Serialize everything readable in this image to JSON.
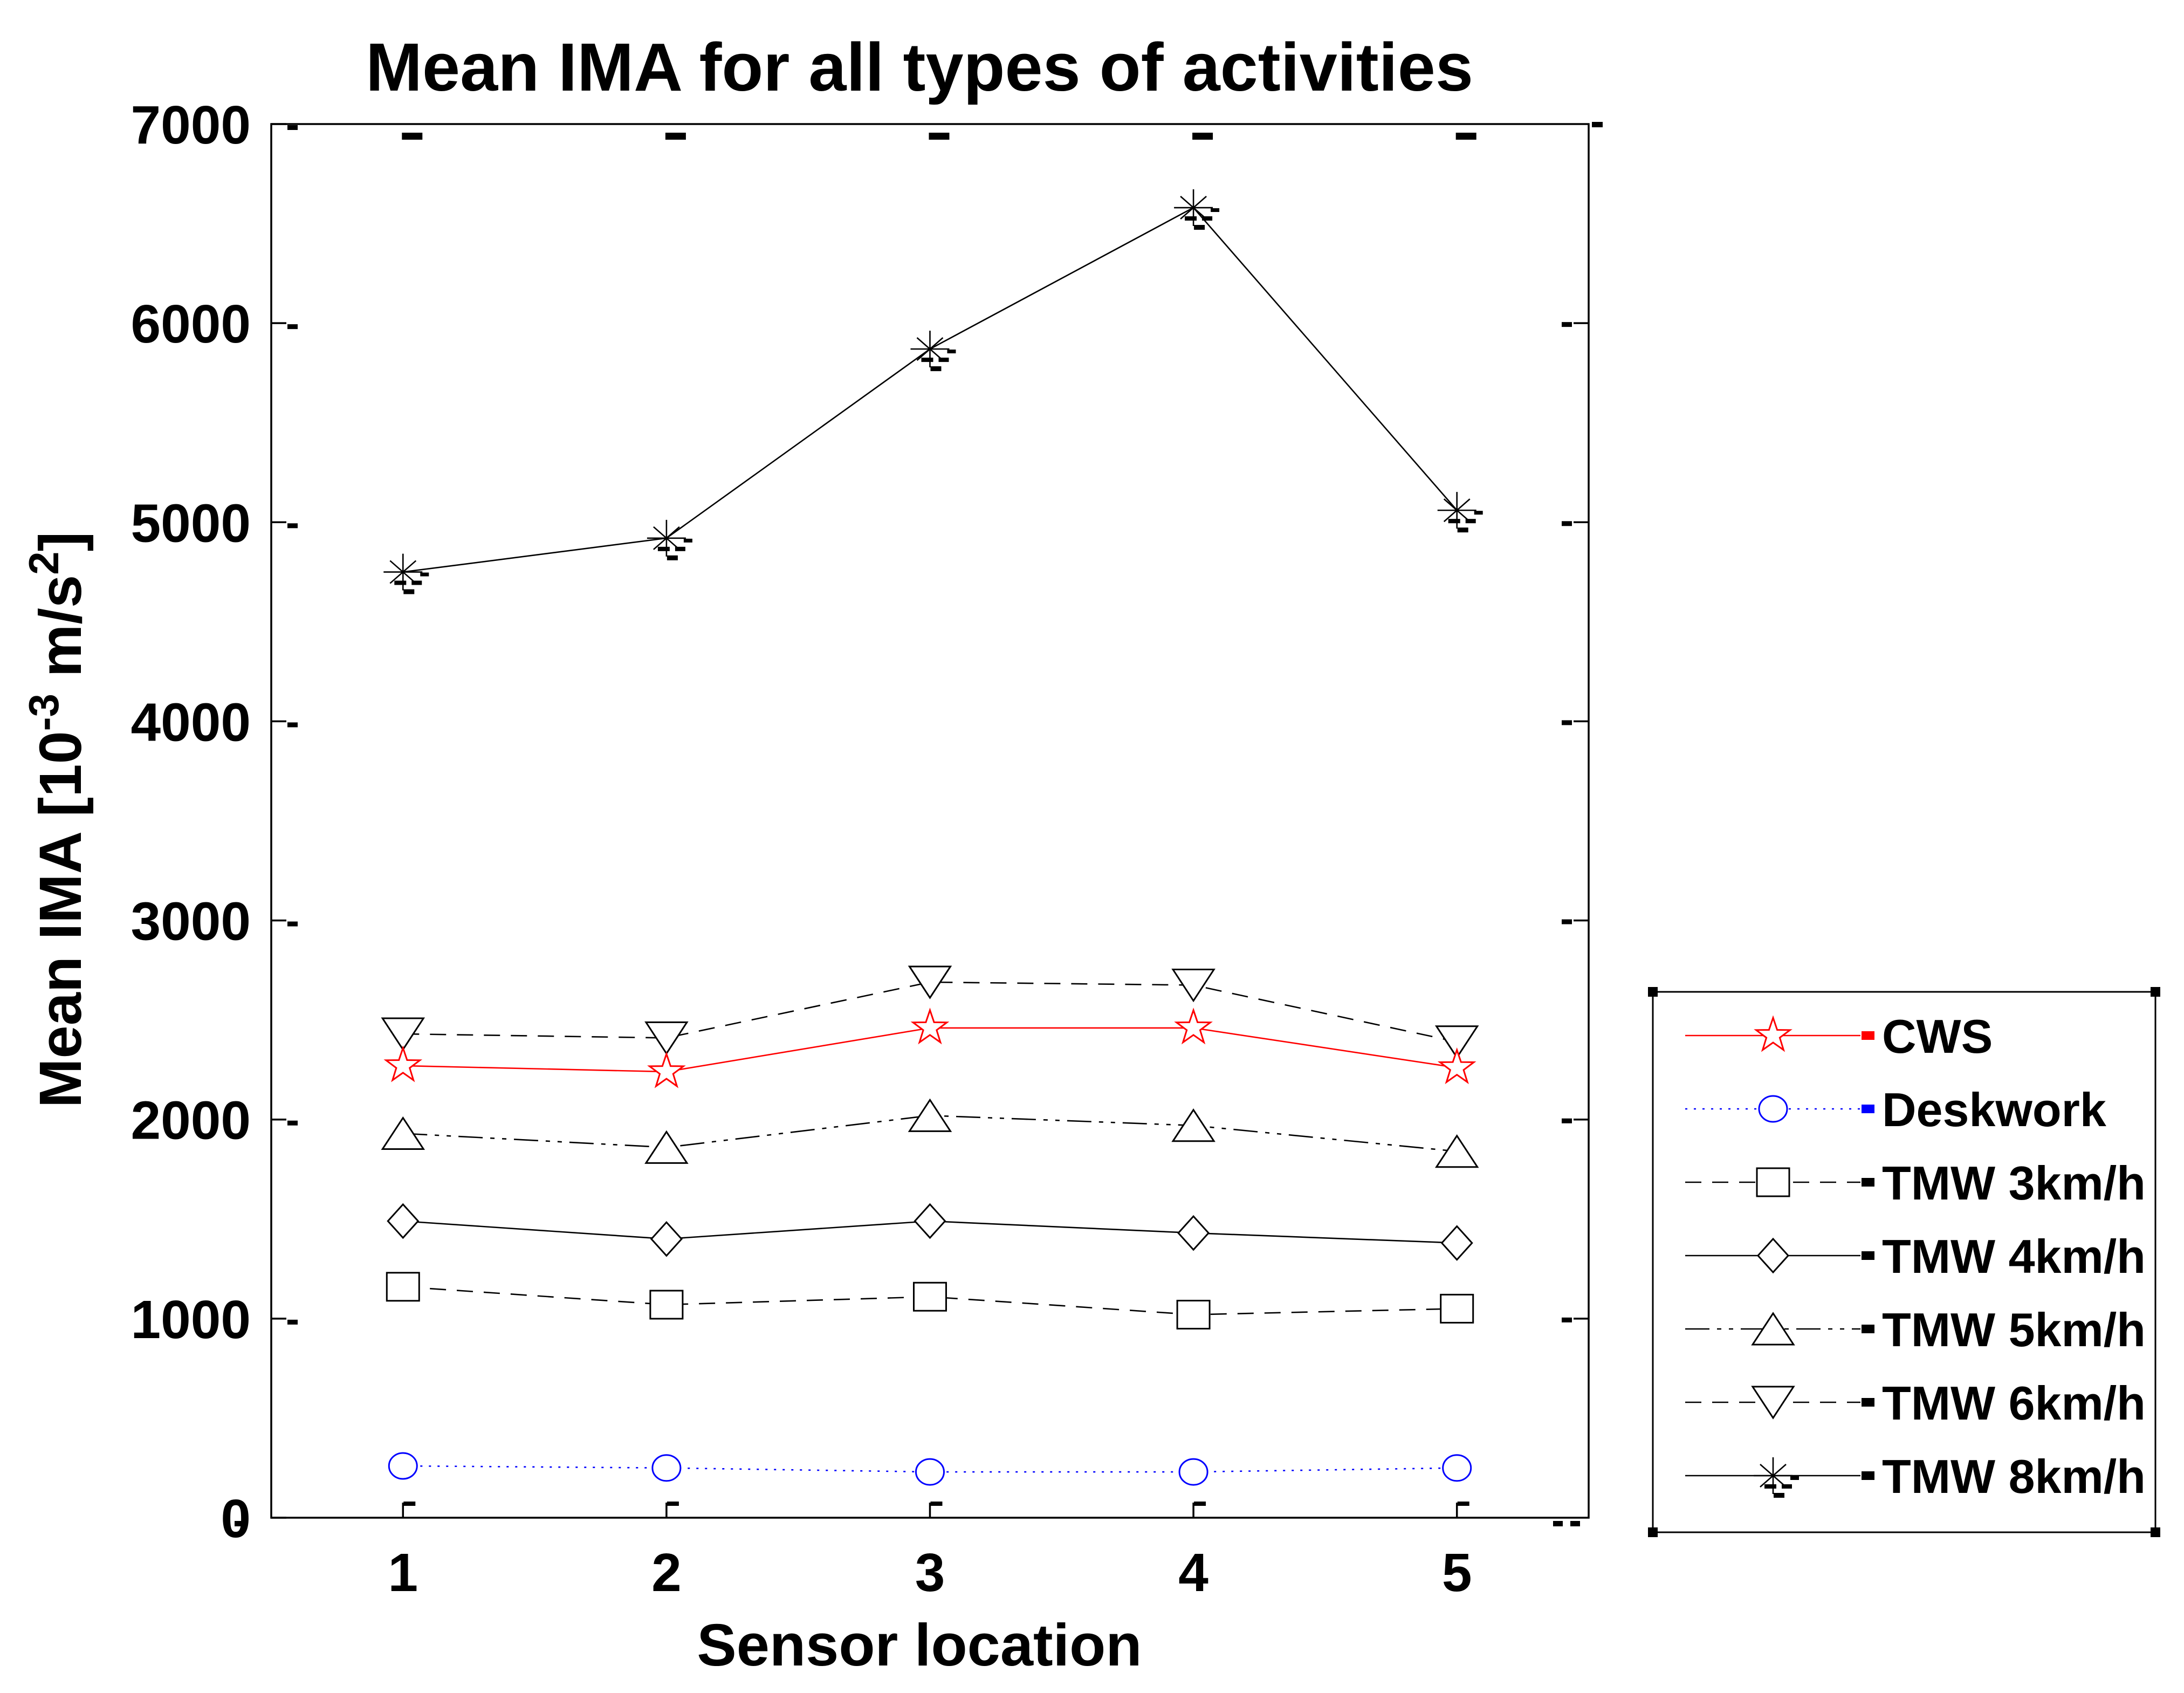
{
  "chart_data": {
    "type": "line",
    "title": "Mean IMA for all types of activities",
    "xlabel": "Sensor location",
    "ylabel": "Mean IMA [10^-3 m/s^2]",
    "ylabel_parts": [
      {
        "text": "Mean IMA [10"
      },
      {
        "text": "-3",
        "sup": true
      },
      {
        "text": " m/s",
        "sup": false
      },
      {
        "text": "2",
        "sup": true
      },
      {
        "text": "]",
        "sup": false
      }
    ],
    "x": [
      1,
      2,
      3,
      4,
      5
    ],
    "xticks": [
      1,
      2,
      3,
      4,
      5
    ],
    "yticks": [
      0,
      1000,
      2000,
      3000,
      4000,
      5000,
      6000,
      7000
    ],
    "xlim": [
      0.5,
      5.5
    ],
    "ylim": [
      0,
      7000
    ],
    "grid": false,
    "legend_position": "right-outside",
    "axis_color": "#000000",
    "background_color": "#ffffff",
    "series": [
      {
        "name": "CWS",
        "marker": "star5",
        "color": "#ff0000",
        "linestyle": "solid",
        "values": [
          2270,
          2240,
          2460,
          2460,
          2260
        ]
      },
      {
        "name": "Deskwork",
        "marker": "circle",
        "color": "#0000ff",
        "linestyle": "dotted",
        "values": [
          260,
          250,
          230,
          230,
          250
        ]
      },
      {
        "name": "TMW 3km/h",
        "marker": "square",
        "color": "#000000",
        "linestyle": "dashed",
        "values": [
          1160,
          1070,
          1110,
          1020,
          1050
        ]
      },
      {
        "name": "TMW 4km/h",
        "marker": "diamond",
        "color": "#000000",
        "linestyle": "solid",
        "values": [
          1490,
          1400,
          1490,
          1430,
          1380
        ]
      },
      {
        "name": "TMW 5km/h",
        "marker": "triangle-up",
        "color": "#000000",
        "linestyle": "dashdotdot",
        "values": [
          1930,
          1860,
          2020,
          1970,
          1840
        ]
      },
      {
        "name": "TMW 6km/h",
        "marker": "triangle-down",
        "color": "#000000",
        "linestyle": "dashed",
        "values": [
          2430,
          2410,
          2690,
          2675,
          2390
        ]
      },
      {
        "name": "TMW 8km/h",
        "marker": "asterisk",
        "color": "#000000",
        "linestyle": "solid",
        "values": [
          4750,
          4920,
          5870,
          6580,
          5060
        ],
        "error_dashes": true
      }
    ]
  }
}
